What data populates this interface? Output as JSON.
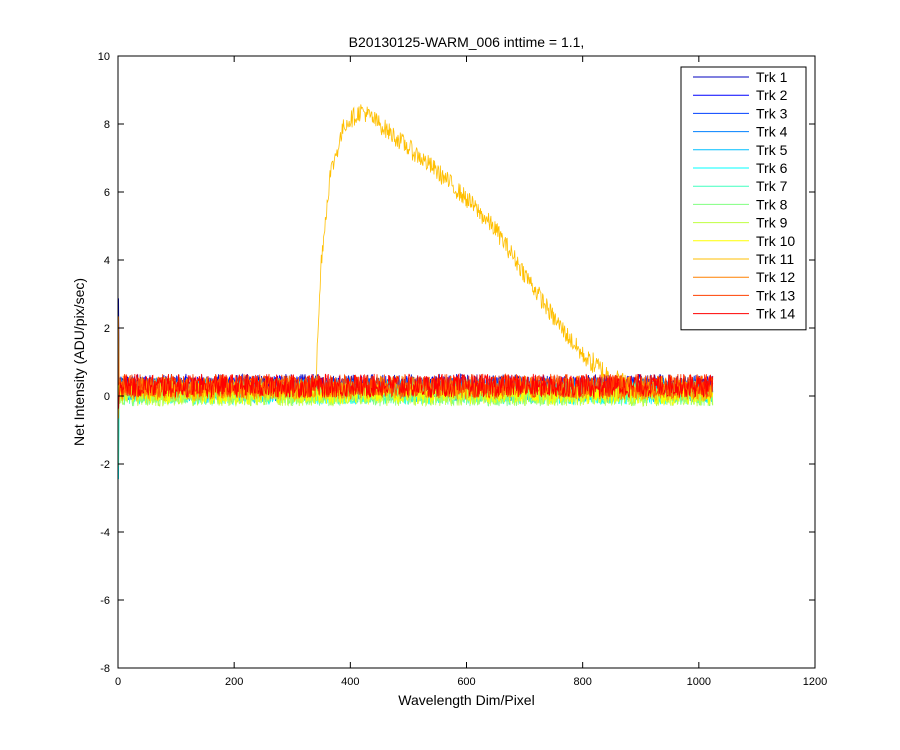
{
  "chart_data": {
    "type": "line",
    "title": "B20130125-WARM_006 inttime = 1.1,",
    "xlabel": "Wavelength Dim/Pixel",
    "ylabel": "Net Intensity (ADU/pix/sec)",
    "xlim": [
      0,
      1200
    ],
    "ylim": [
      -8,
      10
    ],
    "xticks": [
      0,
      200,
      400,
      600,
      800,
      1000,
      1200
    ],
    "yticks": [
      -8,
      -6,
      -4,
      -2,
      0,
      2,
      4,
      6,
      8,
      10
    ],
    "grid": false,
    "legend_position": "top-right",
    "x_range": [
      0,
      1024
    ],
    "series": [
      {
        "name": "Trk 1",
        "color": "#0000bf",
        "baseline": 0.3,
        "noise": 0.7
      },
      {
        "name": "Trk 2",
        "color": "#0000ff",
        "baseline": 0.25,
        "noise": 0.7
      },
      {
        "name": "Trk 3",
        "color": "#0040ff",
        "baseline": 0.2,
        "noise": 0.7
      },
      {
        "name": "Trk 4",
        "color": "#0080ff",
        "baseline": 0.2,
        "noise": 0.7
      },
      {
        "name": "Trk 5",
        "color": "#00bfff",
        "baseline": 0.15,
        "noise": 0.7
      },
      {
        "name": "Trk 6",
        "color": "#00ffff",
        "baseline": 0.1,
        "noise": 0.7
      },
      {
        "name": "Trk 7",
        "color": "#40ffbf",
        "baseline": 0.1,
        "noise": 0.7
      },
      {
        "name": "Trk 8",
        "color": "#80ff80",
        "baseline": 0.05,
        "noise": 0.7
      },
      {
        "name": "Trk 9",
        "color": "#bfff40",
        "baseline": 0.05,
        "noise": 0.7
      },
      {
        "name": "Trk 10",
        "color": "#ffff00",
        "baseline": 0.1,
        "noise": 0.7
      },
      {
        "name": "Trk 11",
        "color": "#ffbf00",
        "baseline": 0.2,
        "noise": 0.7,
        "peak_x": [
          0,
          340,
          350,
          365,
          390,
          420,
          450,
          500,
          550,
          600,
          650,
          700,
          750,
          800,
          850,
          880,
          900,
          1024
        ],
        "peak_y": [
          0.2,
          0.2,
          4.0,
          6.5,
          8.0,
          8.4,
          8.0,
          7.3,
          6.6,
          5.8,
          4.9,
          3.6,
          2.3,
          1.2,
          0.5,
          0.3,
          0.2,
          0.2
        ]
      },
      {
        "name": "Trk 12",
        "color": "#ff8000",
        "baseline": 0.25,
        "noise": 0.7
      },
      {
        "name": "Trk 13",
        "color": "#ff4000",
        "baseline": 0.3,
        "noise": 0.7
      },
      {
        "name": "Trk 14",
        "color": "#ff0000",
        "baseline": 0.3,
        "noise": 0.7
      }
    ]
  }
}
